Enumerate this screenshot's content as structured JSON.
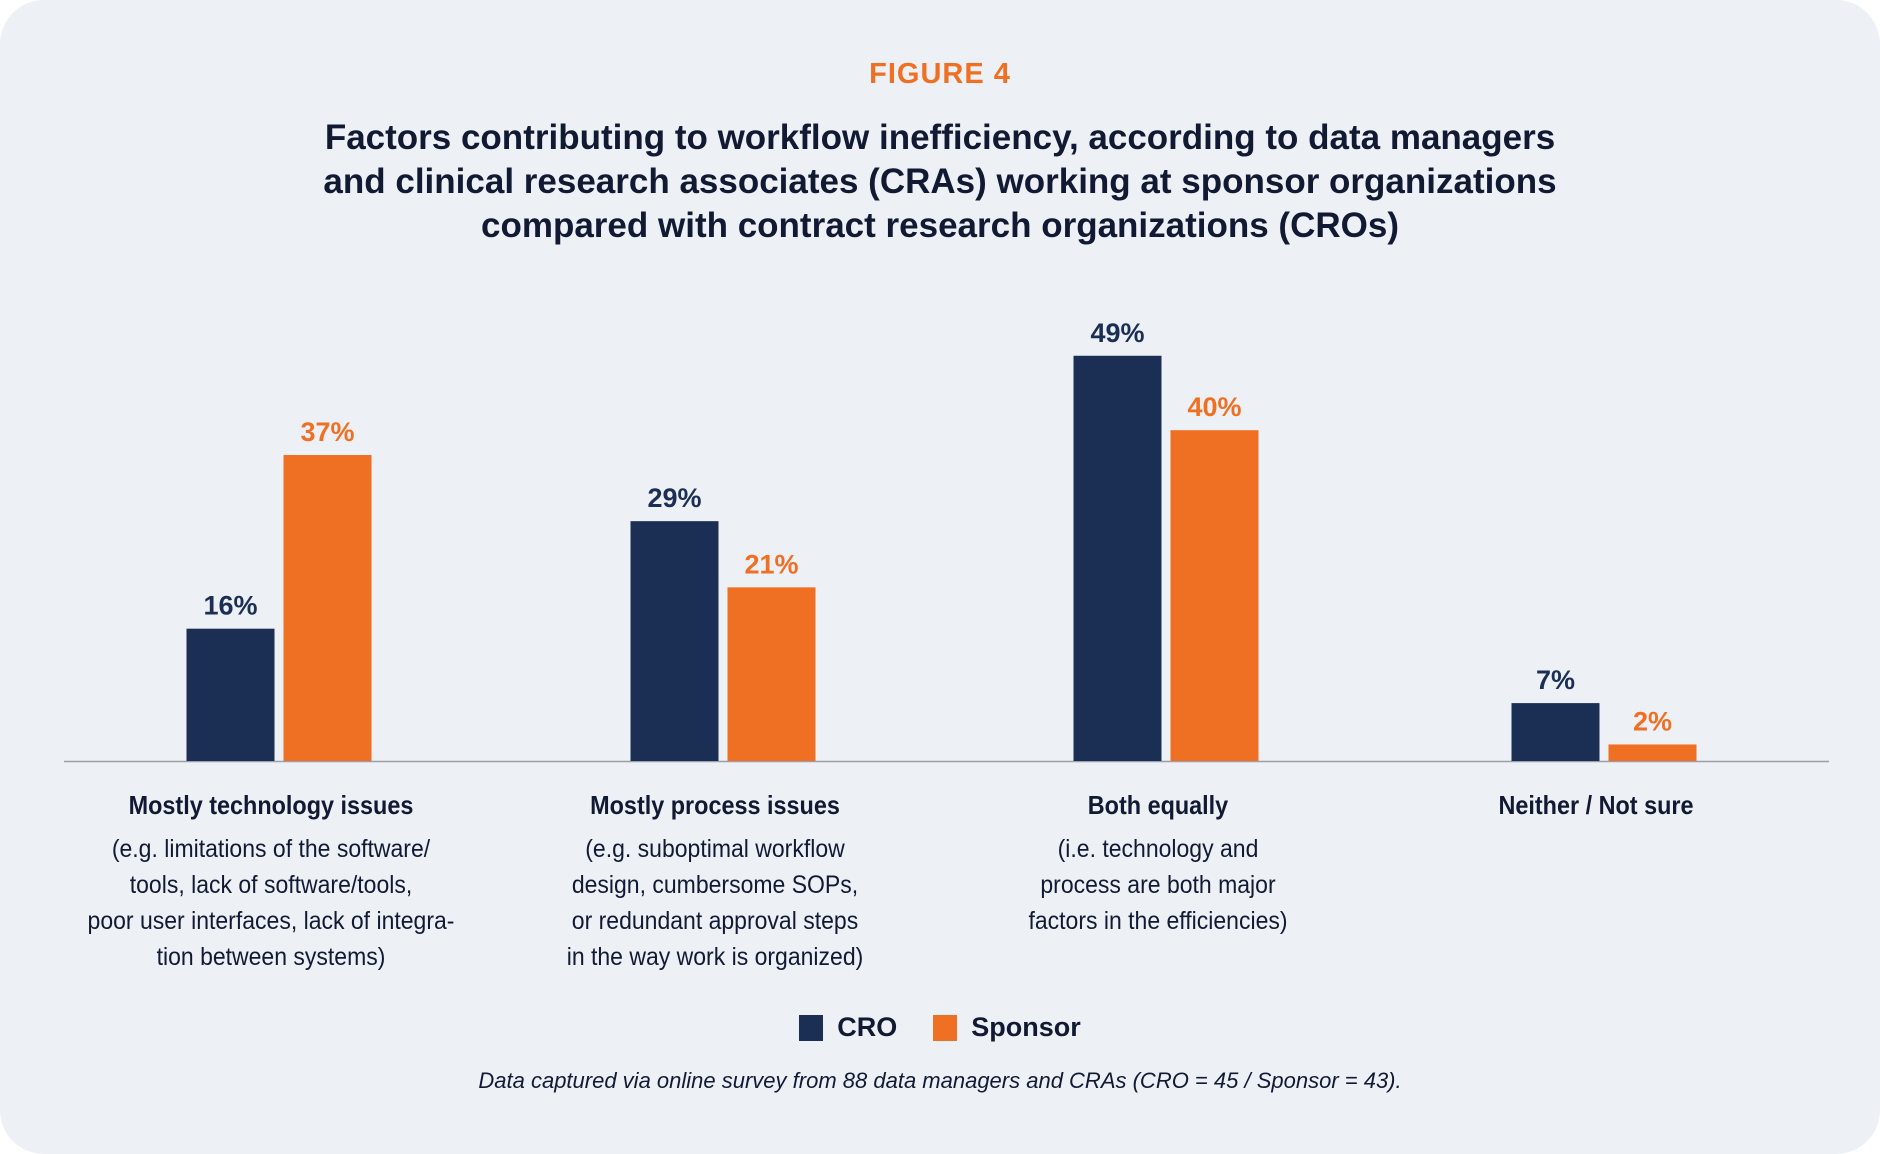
{
  "figure_label": "FIGURE 4",
  "title_lines": [
    "Factors contributing to workflow inefficiency, according to data managers",
    "and clinical research associates (CRAs) working at sponsor organizations",
    "compared with contract research organizations (CROs)"
  ],
  "colors": {
    "cro": "#1b2f55",
    "sponsor": "#f07023",
    "text": "#121a33"
  },
  "chart_data": {
    "type": "bar",
    "title": "Factors contributing to workflow inefficiency, according to data managers and clinical research associates (CRAs) working at sponsor organizations compared with contract research organizations (CROs)",
    "categories": [
      "Mostly technology issues",
      "Mostly process issues",
      "Both equally",
      "Neither / Not sure"
    ],
    "category_descriptions": [
      [
        "(e.g. limitations of the software/",
        "tools, lack of software/tools,",
        "poor user interfaces, lack of integra-",
        "tion between systems)"
      ],
      [
        "(e.g. suboptimal workflow",
        "design, cumbersome SOPs,",
        "or redundant approval steps",
        "in the way work is organized)"
      ],
      [
        "(i.e. technology and",
        "process are both major",
        "factors in the efficiencies)"
      ],
      []
    ],
    "series": [
      {
        "name": "CRO",
        "values": [
          16,
          29,
          49,
          7
        ],
        "labels": [
          "16%",
          "29%",
          "49%",
          "7%"
        ]
      },
      {
        "name": "Sponsor",
        "values": [
          37,
          21,
          40,
          2
        ],
        "labels": [
          "37%",
          "21%",
          "40%",
          "2%"
        ]
      }
    ],
    "ylim": [
      0,
      49
    ],
    "unit": "%",
    "grid": false,
    "legend_position": "bottom-center",
    "xlabel": "",
    "ylabel": ""
  },
  "legend": [
    {
      "label": "CRO"
    },
    {
      "label": "Sponsor"
    }
  ],
  "footnote": "Data captured via online survey from 88 data managers and CRAs (CRO = 45 / Sponsor = 43)."
}
